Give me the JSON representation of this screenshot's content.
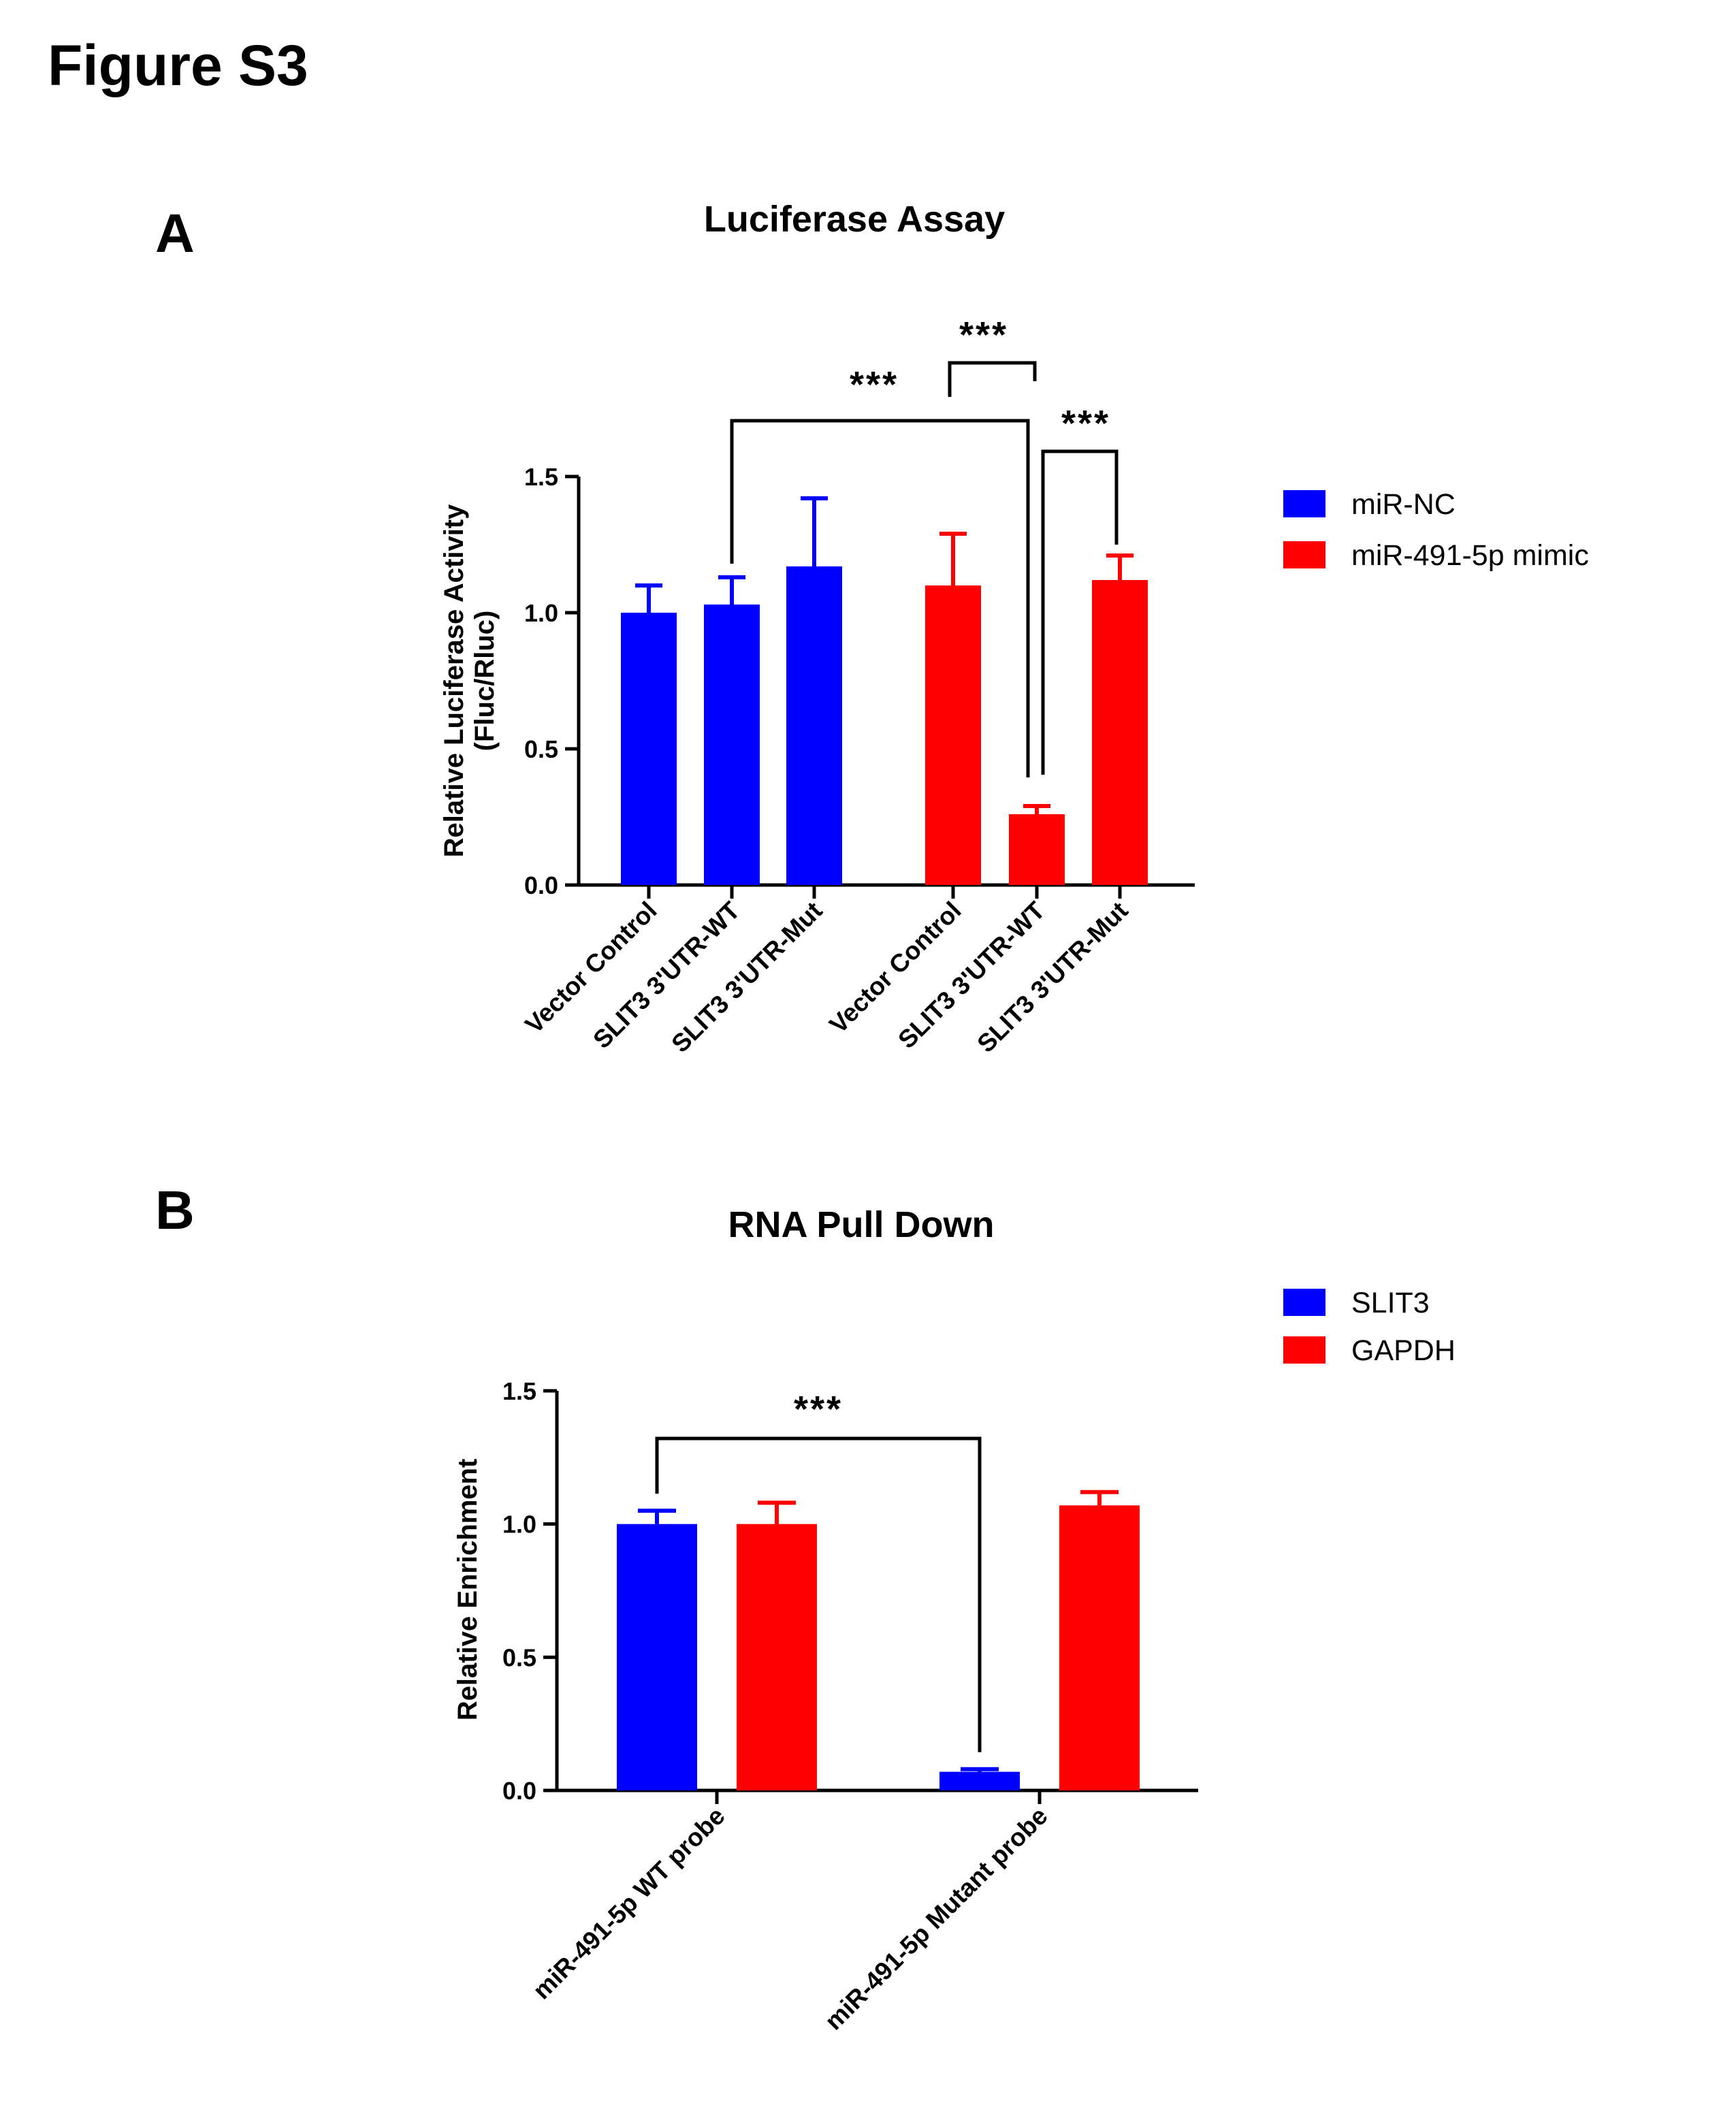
{
  "figure": {
    "title": "Figure S3"
  },
  "colors": {
    "blue": "#0000FF",
    "red": "#FF0000",
    "black": "#000000"
  },
  "chart_data": [
    {
      "panel": "A",
      "type": "bar",
      "title": "Luciferase Assay",
      "ylabel_lines": [
        "Relative Luciferase Activity",
        "(Fluc/Rluc)"
      ],
      "ylim": [
        0,
        1.5
      ],
      "yticks": [
        "0.0",
        "0.5",
        "1.0",
        "1.5"
      ],
      "legend": [
        {
          "label": "miR-NC",
          "color": "#0000FF"
        },
        {
          "label": "miR-491-5p mimic",
          "color": "#FF0000"
        }
      ],
      "groups": [
        {
          "name": "miR-NC",
          "color": "#0000FF",
          "bars": [
            {
              "label": "Vector Control",
              "value": 1.0,
              "error": 0.1
            },
            {
              "label": "SLIT3 3'UTR-WT",
              "value": 1.03,
              "error": 0.1
            },
            {
              "label": "SLIT3 3'UTR-Mut",
              "value": 1.17,
              "error": 0.25
            }
          ]
        },
        {
          "name": "miR-491-5p mimic",
          "color": "#FF0000",
          "bars": [
            {
              "label": "Vector Control",
              "value": 1.1,
              "error": 0.19
            },
            {
              "label": "SLIT3 3'UTR-WT",
              "value": 0.26,
              "error": 0.03
            },
            {
              "label": "SLIT3 3'UTR-Mut",
              "value": 1.12,
              "error": 0.09
            }
          ]
        }
      ],
      "significance": [
        {
          "label": "***",
          "from": 1,
          "to": 4
        },
        {
          "label": "***",
          "from": 3,
          "to": 4
        },
        {
          "label": "***",
          "from": 4,
          "to": 5
        }
      ]
    },
    {
      "panel": "B",
      "type": "bar",
      "title": "RNA Pull Down",
      "ylabel": "Relative Enrichment",
      "ylim": [
        0,
        1.5
      ],
      "yticks": [
        "0.0",
        "0.5",
        "1.0",
        "1.5"
      ],
      "legend": [
        {
          "label": "SLIT3",
          "color": "#0000FF"
        },
        {
          "label": "GAPDH",
          "color": "#FF0000"
        }
      ],
      "categories": [
        "miR-491-5p WT probe",
        "miR-491-5p Mutant probe"
      ],
      "series": [
        {
          "name": "SLIT3",
          "color": "#0000FF",
          "values": [
            1.0,
            0.07
          ],
          "errors": [
            0.05,
            0.01
          ]
        },
        {
          "name": "GAPDH",
          "color": "#FF0000",
          "values": [
            1.0,
            1.07
          ],
          "errors": [
            0.08,
            0.05
          ]
        }
      ],
      "significance": [
        {
          "label": "***",
          "series": "SLIT3",
          "from_category": 0,
          "to_category": 1
        }
      ]
    }
  ]
}
